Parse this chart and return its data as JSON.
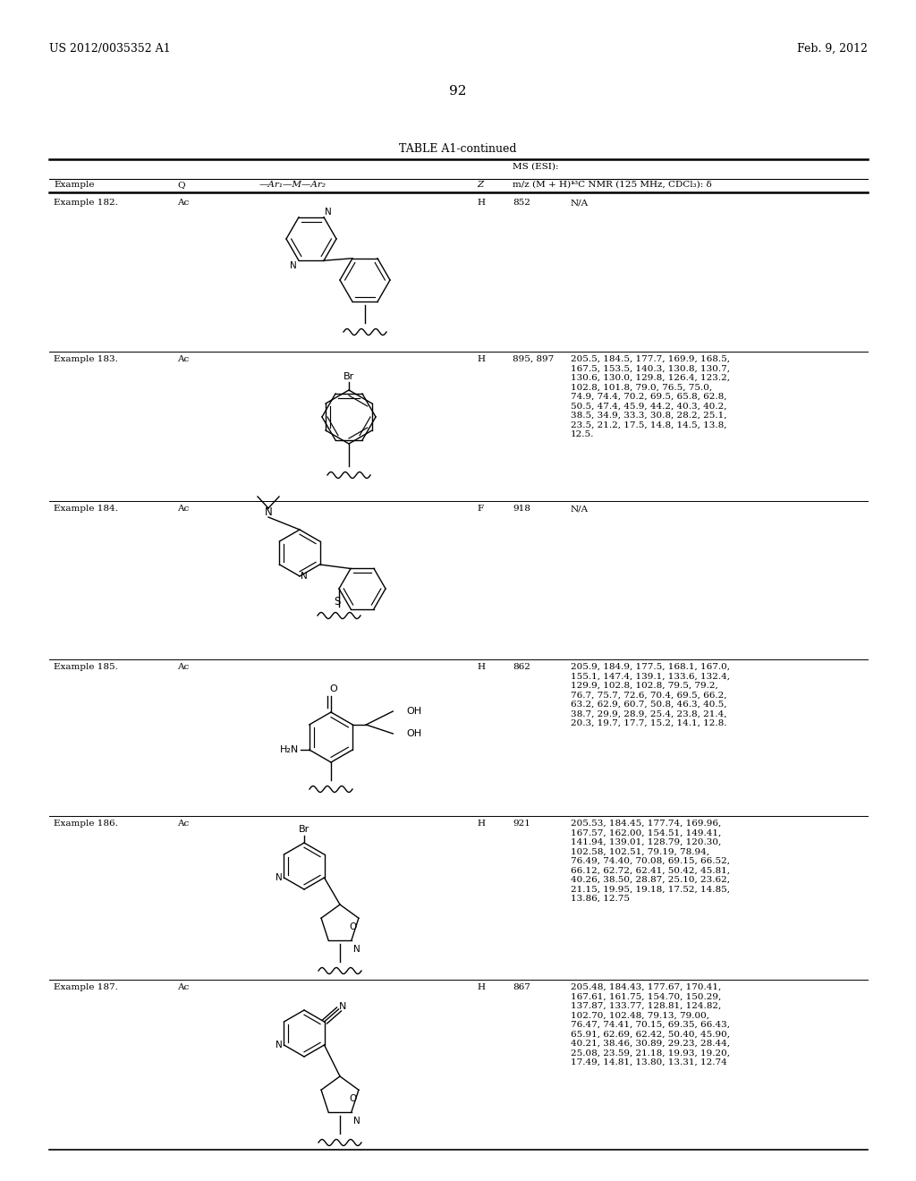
{
  "page_number": "92",
  "patent_number": "US 2012/0035352 A1",
  "patent_date": "Feb. 9, 2012",
  "table_title": "TABLE A1-continued",
  "rows": [
    {
      "example": "Example 182.",
      "Q": "Ac",
      "Z": "H",
      "ms": "852",
      "nmr_lines": [
        "N/A"
      ]
    },
    {
      "example": "Example 183.",
      "Q": "Ac",
      "Z": "H",
      "ms": "895, 897",
      "nmr_lines": [
        "205.5, 184.5, 177.7, 169.9, 168.5,",
        "167.5, 153.5, 140.3, 130.8, 130.7,",
        "130.6, 130.0, 129.8, 126.4, 123.2,",
        "102.8, 101.8, 79.0, 76.5, 75.0,",
        "74.9, 74.4, 70.2, 69.5, 65.8, 62.8,",
        "50.5, 47.4, 45.9, 44.2, 40.3, 40.2,",
        "38.5, 34.9, 33.3, 30.8, 28.2, 25.1,",
        "23.5, 21.2, 17.5, 14.8, 14.5, 13.8,",
        "12.5."
      ]
    },
    {
      "example": "Example 184.",
      "Q": "Ac",
      "Z": "F",
      "ms": "918",
      "nmr_lines": [
        "N/A"
      ]
    },
    {
      "example": "Example 185.",
      "Q": "Ac",
      "Z": "H",
      "ms": "862",
      "nmr_lines": [
        "205.9, 184.9, 177.5, 168.1, 167.0,",
        "155.1, 147.4, 139.1, 133.6, 132.4,",
        "129.9, 102.8, 102.8, 79.5, 79.2,",
        "76.7, 75.7, 72.6, 70.4, 69.5, 66.2,",
        "63.2, 62.9, 60.7, 50.8, 46.3, 40.5,",
        "38.7, 29.9, 28.9, 25.4, 23.8, 21.4,",
        "20.3, 19.7, 17.7, 15.2, 14.1, 12.8."
      ]
    },
    {
      "example": "Example 186.",
      "Q": "Ac",
      "Z": "H",
      "ms": "921",
      "nmr_lines": [
        "205.53, 184.45, 177.74, 169.96,",
        "167.57, 162.00, 154.51, 149.41,",
        "141.94, 139.01, 128.79, 120.30,",
        "102.58, 102.51, 79.19, 78.94,",
        "76.49, 74.40, 70.08, 69.15, 66.52,",
        "66.12, 62.72, 62.41, 50.42, 45.81,",
        "40.26, 38.50, 28.87, 25.10, 23.62,",
        "21.15, 19.95, 19.18, 17.52, 14.85,",
        "13.86, 12.75"
      ]
    },
    {
      "example": "Example 187.",
      "Q": "Ac",
      "Z": "H",
      "ms": "867",
      "nmr_lines": [
        "205.48, 184.43, 177.67, 170.41,",
        "167.61, 161.75, 154.70, 150.29,",
        "137.87, 133.77, 128.81, 124.82,",
        "102.70, 102.48, 79.13, 79.00,",
        "76.47, 74.41, 70.15, 69.35, 66.43,",
        "65.91, 62.69, 62.42, 50.40, 45.90,",
        "40.21, 38.46, 30.89, 29.23, 28.44,",
        "25.08, 23.59, 21.18, 19.93, 19.20,",
        "17.49, 14.81, 13.80, 13.31, 12.74"
      ]
    }
  ]
}
